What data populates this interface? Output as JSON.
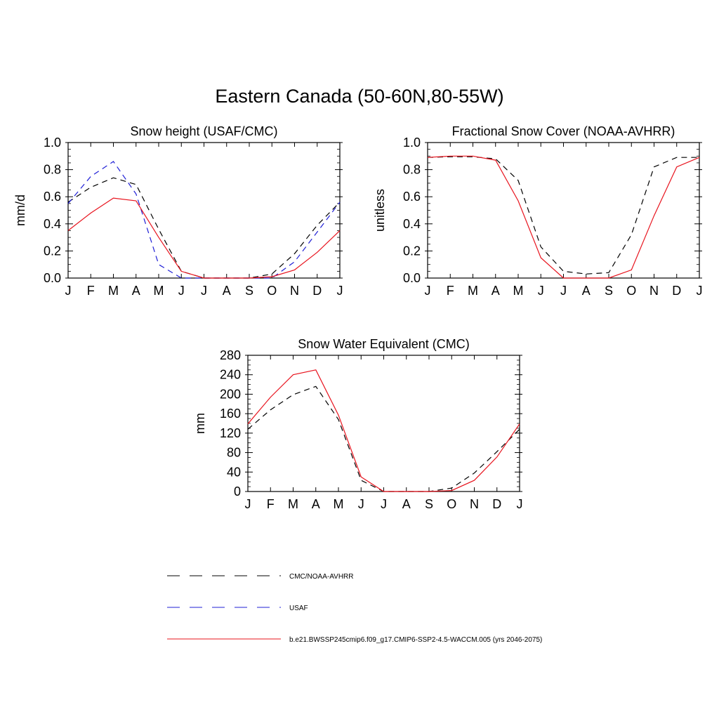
{
  "title": "Eastern Canada (50-60N,80-55W)",
  "colors": {
    "obs": "#000000",
    "usaf": "#1f1fd6",
    "model": "#e8141e"
  },
  "legend": [
    {
      "label": "CMC/NOAA-AVHRR",
      "color": "#000000",
      "dash": true
    },
    {
      "label": "USAF",
      "color": "#1f1fd6",
      "dash": true
    },
    {
      "label": "b.e21.BWSSP245cmip6.f09_g17.CMIP6-SSP2-4.5-WACCM.005 (yrs 2046-2075)",
      "color": "#e8141e",
      "dash": false
    }
  ],
  "chart_data": [
    {
      "type": "line",
      "title": "Snow height (USAF/CMC)",
      "ylabel": "mm/d",
      "ylim": [
        0,
        1.0
      ],
      "yticks": [
        "0.0",
        "0.2",
        "0.4",
        "0.6",
        "0.8",
        "1.0"
      ],
      "categories": [
        "J",
        "F",
        "M",
        "A",
        "M",
        "J",
        "J",
        "A",
        "S",
        "O",
        "N",
        "D",
        "J"
      ],
      "series": [
        {
          "name": "CMC/NOAA-AVHRR",
          "color": "#000000",
          "dash": true,
          "values": [
            0.56,
            0.67,
            0.74,
            0.69,
            0.36,
            0.05,
            0.0,
            0.0,
            0.0,
            0.03,
            0.18,
            0.39,
            0.56
          ]
        },
        {
          "name": "USAF",
          "color": "#1f1fd6",
          "dash": true,
          "values": [
            0.55,
            0.75,
            0.86,
            0.62,
            0.1,
            0.0,
            0.0,
            0.0,
            0.0,
            0.0,
            0.12,
            0.34,
            0.56
          ]
        },
        {
          "name": "b.e21.BWSSP245cmip6.f09_g17.CMIP6-SSP2-4.5-WACCM.005 (yrs 2046-2075)",
          "color": "#e8141e",
          "dash": false,
          "values": [
            0.35,
            0.48,
            0.59,
            0.57,
            0.3,
            0.05,
            0.0,
            0.0,
            0.0,
            0.01,
            0.06,
            0.19,
            0.35
          ]
        }
      ]
    },
    {
      "type": "line",
      "title": "Fractional Snow Cover (NOAA-AVHRR)",
      "ylabel": "unitless",
      "ylim": [
        0,
        1.0
      ],
      "yticks": [
        "0.0",
        "0.2",
        "0.4",
        "0.6",
        "0.8",
        "1.0"
      ],
      "categories": [
        "J",
        "F",
        "M",
        "A",
        "M",
        "J",
        "J",
        "A",
        "S",
        "O",
        "N",
        "D",
        "J"
      ],
      "series": [
        {
          "name": "CMC/NOAA-AVHRR",
          "color": "#000000",
          "dash": true,
          "values": [
            0.89,
            0.895,
            0.895,
            0.88,
            0.72,
            0.23,
            0.05,
            0.03,
            0.04,
            0.32,
            0.82,
            0.89,
            0.89
          ]
        },
        {
          "name": "b.e21.BWSSP245cmip6.f09_g17.CMIP6-SSP2-4.5-WACCM.005 (yrs 2046-2075)",
          "color": "#e8141e",
          "dash": false,
          "values": [
            0.89,
            0.9,
            0.9,
            0.87,
            0.57,
            0.15,
            0.0,
            0.0,
            0.0,
            0.06,
            0.46,
            0.82,
            0.89
          ]
        }
      ]
    },
    {
      "type": "line",
      "title": "Snow Water Equivalent (CMC)",
      "ylabel": "mm",
      "ylim": [
        0,
        280
      ],
      "yticks": [
        "0",
        "40",
        "80",
        "120",
        "160",
        "200",
        "240",
        "280"
      ],
      "categories": [
        "J",
        "F",
        "M",
        "A",
        "M",
        "J",
        "J",
        "A",
        "S",
        "O",
        "N",
        "D",
        "J"
      ],
      "series": [
        {
          "name": "CMC/NOAA-AVHRR",
          "color": "#000000",
          "dash": true,
          "values": [
            128,
            168,
            199,
            216,
            148,
            23,
            0,
            0,
            0,
            7,
            38,
            82,
            128
          ]
        },
        {
          "name": "b.e21.BWSSP245cmip6.f09_g17.CMIP6-SSP2-4.5-WACCM.005 (yrs 2046-2075)",
          "color": "#e8141e",
          "dash": false,
          "values": [
            139,
            194,
            240,
            250,
            157,
            30,
            0,
            0,
            0,
            2,
            23,
            71,
            139
          ]
        }
      ]
    }
  ]
}
